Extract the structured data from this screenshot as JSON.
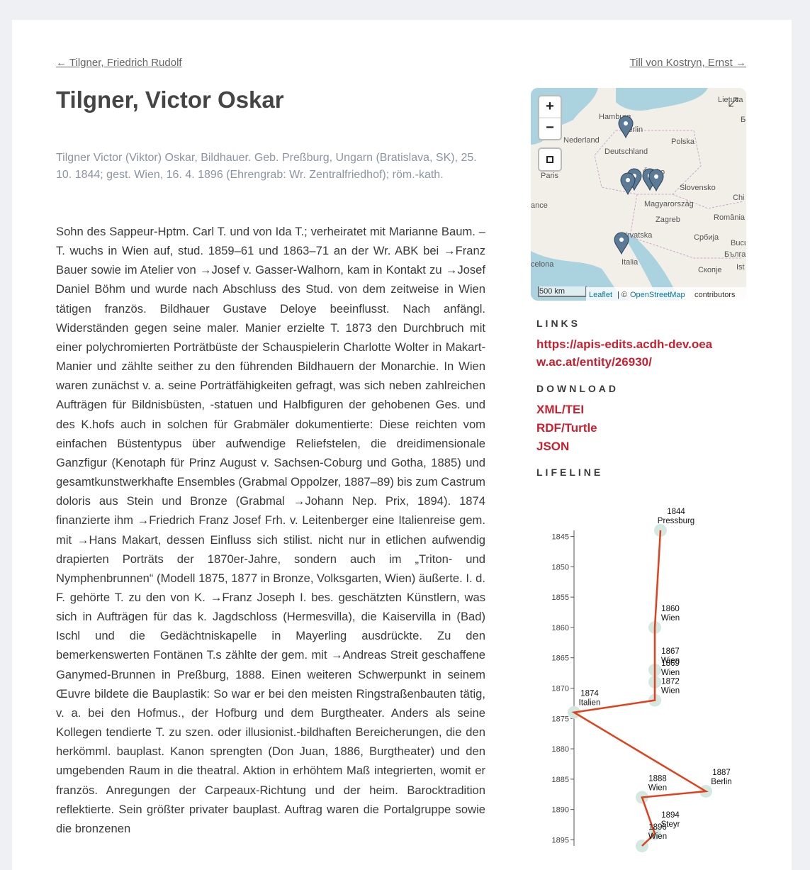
{
  "nav": {
    "prev": "← Tilgner, Friedrich Rudolf",
    "next": "Till von Kostryn, Ernst →"
  },
  "title": "Tilgner, Victor Oskar",
  "intro": "Tilgner Victor (Viktor) Oskar, Bildhauer. Geb. Preßburg, Ungarn (Bratislava, SK), 25. 10. 1844; gest. Wien, 16. 4. 1896 (Ehrengrab: Wr. Zentralfriedhof); röm.-kath.",
  "body": "Sohn des Sappeur-Hptm. Carl T. und von Ida T.; verheiratet mit Marianne Baum. – T. wuchs in Wien auf, stud. 1859–61 und 1863–71 an der Wr. ABK bei →Franz Bauer sowie im Atelier von →Josef v. Gasser-Walhorn, kam in Kontakt zu →Josef Daniel Böhm und wurde nach Abschluss des Stud. von dem zeitweise in Wien tätigen französ. Bildhauer Gustave Deloye beeinflusst. Nach anfängl. Widerständen gegen seine maler. Manier erzielte T. 1873 den Durchbruch mit einer polychromierten Porträtbüste der Schauspielerin Charlotte Wolter in Makart-Manier und zählte seither zu den führenden Bildhauern der Monarchie. In Wien waren zunächst v. a. seine Porträtfähigkeiten gefragt, was sich neben zahlreichen Aufträgen für Bildnisbüsten, -statuen und Halbfiguren der gehobenen Ges. und des K.hofs auch in solchen für Grabmäler dokumentierte: Diese reichten vom einfachen Büstentypus über aufwendige Reliefstelen, die dreidimensionale Ganzfigur (Kenotaph für Prinz August v. Sachsen-Coburg und Gotha, 1885) und gesamtkunstwerkhafte Ensembles (Grabmal Oppolzer, 1887–89) bis zum Castrum doloris aus Stein und Bronze (Grabmal →Johann Nep. Prix, 1894). 1874 finanzierte ihm →Friedrich Franz Josef Frh. v. Leitenberger eine Italienreise gem. mit →Hans Makart, dessen Einfluss sich stilist. nicht nur in etlichen aufwendig drapierten Porträts der 1870er-Jahre, sondern auch im „Triton- und Nymphenbrunnen“ (Modell 1875, 1877 in Bronze, Volksgarten, Wien) äußerte. I. d. F. gehörte T. zu den von K. →Franz Joseph I. bes. geschätzten Künstlern, was sich in Aufträgen für das k. Jagdschloss (Hermesvilla), die Kaiservilla in (Bad) Ischl und die Gedächtniskapelle in Mayerling ausdrückte. Zu den bemerkenswerten Fontänen T.s zählte der gem. mit →Andreas Streit geschaffene Ganymed-Brunnen in Preßburg, 1888. Einen weiteren Schwerpunkt in seinem Œuvre bildete die Bauplastik: So war er bei den meisten Ringstraßenbauten tätig, v. a. bei den Hofmus., der Hofburg und dem Burgtheater. Anders als seine Kollegen tendierte T. zu szen. oder illusionist.-bildhaften Bereicherungen, die den herkömml. bauplast. Kanon sprengten (Don Juan, 1886, Burgtheater) und den umgebenden Raum in die theatral. Aktion in erhöhtem Maß integrierten, womit er französ. Anregungen der Carpeaux-Richtung und der heim. Barocktradition reflektierte. Sein größter privater bauplast. Auftrag waren die Portalgruppe sowie die bronzenen",
  "map": {
    "zoom_in": "+",
    "zoom_out": "−",
    "scale": "500 km",
    "attribution": {
      "leaflet": "Leaflet",
      "sep": "| ©",
      "osm": "OpenStreetMap",
      "contributors": "contributors"
    },
    "labels": [
      "Lietuva",
      "Hamburg",
      "Berlin",
      "Белар",
      "Nederland",
      "Deutschland",
      "Polska",
      "Paris",
      "Česko",
      "Slovensko",
      "ance",
      "Magyarország",
      "Zagreb",
      "România",
      "Hrvatska",
      "Србија",
      "București",
      "Italia",
      "Бълга",
      "celona",
      "Скопје",
      "Chi",
      "Ist"
    ]
  },
  "sidebar": {
    "links_heading": "LINKS",
    "link": "https://apis-edits.acdh-dev.oeaw.ac.at/entity/26930/",
    "download_heading": "DOWNLOAD",
    "downloads": [
      "XML/TEI",
      "RDF/Turtle",
      "JSON"
    ],
    "lifeline_heading": "LIFELINE"
  },
  "chart_data": {
    "type": "line",
    "color": "#e0401c",
    "marker_color": "#d3e8e1",
    "categories": [
      "Pressburg",
      "Wien",
      "Wien",
      "Wien",
      "Wien",
      "Italien",
      "Berlin",
      "Wien",
      "Steyr",
      "Wien"
    ],
    "values": [
      1844,
      1860,
      1867,
      1869,
      1872,
      1874,
      1887,
      1888,
      1894,
      1896
    ],
    "ylim": [
      1844,
      1896
    ],
    "yticks": [
      1845,
      1850,
      1855,
      1860,
      1865,
      1870,
      1875,
      1880,
      1885,
      1890,
      1895
    ]
  }
}
